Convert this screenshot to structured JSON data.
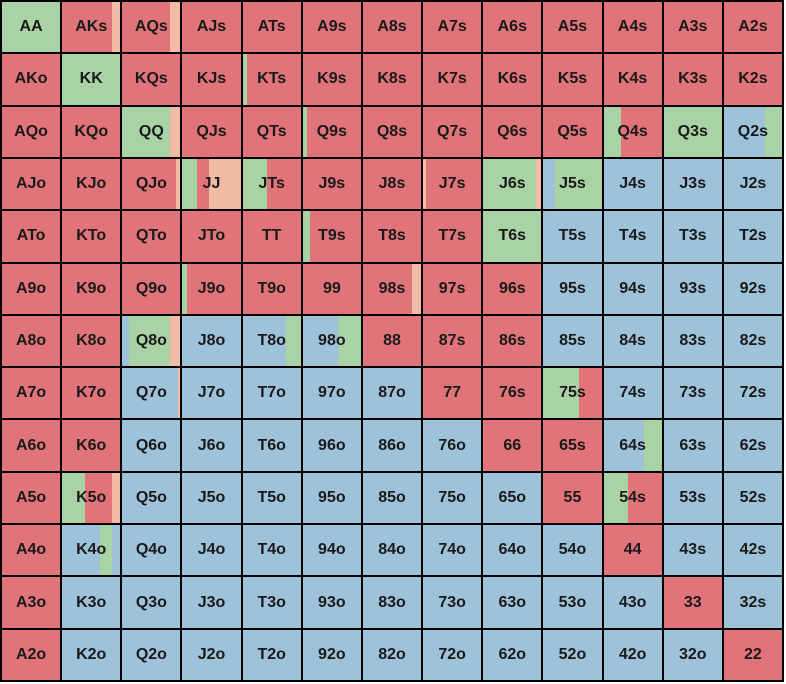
{
  "colors": {
    "raise": "#e0747a",
    "call": "#a9d3a4",
    "fold": "#9ec2da",
    "limp": "#f2bba5"
  },
  "hands": [
    [
      "AA",
      "AKs",
      "AQs",
      "AJs",
      "ATs",
      "A9s",
      "A8s",
      "A7s",
      "A6s",
      "A5s",
      "A4s",
      "A3s",
      "A2s"
    ],
    [
      "AKo",
      "KK",
      "KQs",
      "KJs",
      "KTs",
      "K9s",
      "K8s",
      "K7s",
      "K6s",
      "K5s",
      "K4s",
      "K3s",
      "K2s"
    ],
    [
      "AQo",
      "KQo",
      "QQ",
      "QJs",
      "QTs",
      "Q9s",
      "Q8s",
      "Q7s",
      "Q6s",
      "Q5s",
      "Q4s",
      "Q3s",
      "Q2s"
    ],
    [
      "AJo",
      "KJo",
      "QJo",
      "JJ",
      "JTs",
      "J9s",
      "J8s",
      "J7s",
      "J6s",
      "J5s",
      "J4s",
      "J3s",
      "J2s"
    ],
    [
      "ATo",
      "KTo",
      "QTo",
      "JTo",
      "TT",
      "T9s",
      "T8s",
      "T7s",
      "T6s",
      "T5s",
      "T4s",
      "T3s",
      "T2s"
    ],
    [
      "A9o",
      "K9o",
      "Q9o",
      "J9o",
      "T9o",
      "99",
      "98s",
      "97s",
      "96s",
      "95s",
      "94s",
      "93s",
      "92s"
    ],
    [
      "A8o",
      "K8o",
      "Q8o",
      "J8o",
      "T8o",
      "98o",
      "88",
      "87s",
      "86s",
      "85s",
      "84s",
      "83s",
      "82s"
    ],
    [
      "A7o",
      "K7o",
      "Q7o",
      "J7o",
      "T7o",
      "97o",
      "87o",
      "77",
      "76s",
      "75s",
      "74s",
      "73s",
      "72s"
    ],
    [
      "A6o",
      "K6o",
      "Q6o",
      "J6o",
      "T6o",
      "96o",
      "86o",
      "76o",
      "66",
      "65s",
      "64s",
      "63s",
      "62s"
    ],
    [
      "A5o",
      "K5o",
      "Q5o",
      "J5o",
      "T5o",
      "95o",
      "85o",
      "75o",
      "65o",
      "55",
      "54s",
      "53s",
      "52s"
    ],
    [
      "A4o",
      "K4o",
      "Q4o",
      "J4o",
      "T4o",
      "94o",
      "84o",
      "74o",
      "64o",
      "54o",
      "44",
      "43s",
      "42s"
    ],
    [
      "A3o",
      "K3o",
      "Q3o",
      "J3o",
      "T3o",
      "93o",
      "83o",
      "73o",
      "63o",
      "53o",
      "43o",
      "33",
      "32s"
    ],
    [
      "A2o",
      "K2o",
      "Q2o",
      "J2o",
      "T2o",
      "92o",
      "82o",
      "72o",
      "62o",
      "52o",
      "42o",
      "32o",
      "22"
    ]
  ],
  "strategy": [
    [
      [
        [
          "call",
          1
        ]
      ],
      [
        [
          "raise",
          0.85
        ],
        [
          "limp",
          0.15
        ]
      ],
      [
        [
          "raise",
          0.82
        ],
        [
          "limp",
          0.18
        ]
      ],
      [
        [
          "raise",
          1
        ]
      ],
      [
        [
          "raise",
          1
        ]
      ],
      [
        [
          "raise",
          1
        ]
      ],
      [
        [
          "raise",
          1
        ]
      ],
      [
        [
          "raise",
          1
        ]
      ],
      [
        [
          "raise",
          1
        ]
      ],
      [
        [
          "raise",
          1
        ]
      ],
      [
        [
          "raise",
          1
        ]
      ],
      [
        [
          "raise",
          1
        ]
      ],
      [
        [
          "raise",
          1
        ]
      ]
    ],
    [
      [
        [
          "raise",
          1
        ]
      ],
      [
        [
          "call",
          1
        ]
      ],
      [
        [
          "raise",
          1
        ]
      ],
      [
        [
          "raise",
          1
        ]
      ],
      [
        [
          "call",
          0.08
        ],
        [
          "raise",
          0.92
        ]
      ],
      [
        [
          "raise",
          1
        ]
      ],
      [
        [
          "raise",
          1
        ]
      ],
      [
        [
          "raise",
          1
        ]
      ],
      [
        [
          "raise",
          1
        ]
      ],
      [
        [
          "raise",
          1
        ]
      ],
      [
        [
          "raise",
          1
        ]
      ],
      [
        [
          "raise",
          1
        ]
      ],
      [
        [
          "raise",
          1
        ]
      ]
    ],
    [
      [
        [
          "raise",
          1
        ]
      ],
      [
        [
          "raise",
          1
        ]
      ],
      [
        [
          "call",
          0.82
        ],
        [
          "limp",
          0.18
        ]
      ],
      [
        [
          "raise",
          1
        ]
      ],
      [
        [
          "raise",
          1
        ]
      ],
      [
        [
          "call",
          0.08
        ],
        [
          "raise",
          0.92
        ]
      ],
      [
        [
          "raise",
          1
        ]
      ],
      [
        [
          "raise",
          1
        ]
      ],
      [
        [
          "raise",
          1
        ]
      ],
      [
        [
          "raise",
          1
        ]
      ],
      [
        [
          "call",
          0.3
        ],
        [
          "raise",
          0.7
        ]
      ],
      [
        [
          "call",
          1
        ]
      ],
      [
        [
          "fold",
          0.7
        ],
        [
          "call",
          0.3
        ]
      ]
    ],
    [
      [
        [
          "raise",
          1
        ]
      ],
      [
        [
          "raise",
          1
        ]
      ],
      [
        [
          "raise",
          0.92
        ],
        [
          "limp",
          0.08
        ]
      ],
      [
        [
          "call",
          0.25
        ],
        [
          "raise",
          0.2
        ],
        [
          "limp",
          0.55
        ]
      ],
      [
        [
          "call",
          0.42
        ],
        [
          "raise",
          0.58
        ]
      ],
      [
        [
          "raise",
          1
        ]
      ],
      [
        [
          "raise",
          1
        ]
      ],
      [
        [
          "limp",
          0.05
        ],
        [
          "raise",
          0.95
        ]
      ],
      [
        [
          "call",
          0.9
        ],
        [
          "limp",
          0.1
        ]
      ],
      [
        [
          "fold",
          0.2
        ],
        [
          "call",
          0.8
        ]
      ],
      [
        [
          "fold",
          1
        ]
      ],
      [
        [
          "fold",
          1
        ]
      ],
      [
        [
          "fold",
          1
        ]
      ]
    ],
    [
      [
        [
          "raise",
          1
        ]
      ],
      [
        [
          "raise",
          1
        ]
      ],
      [
        [
          "raise",
          1
        ]
      ],
      [
        [
          "raise",
          1
        ]
      ],
      [
        [
          "raise",
          1
        ]
      ],
      [
        [
          "call",
          0.12
        ],
        [
          "raise",
          0.88
        ]
      ],
      [
        [
          "raise",
          1
        ]
      ],
      [
        [
          "raise",
          1
        ]
      ],
      [
        [
          "call",
          1
        ]
      ],
      [
        [
          "fold",
          1
        ]
      ],
      [
        [
          "fold",
          1
        ]
      ],
      [
        [
          "fold",
          1
        ]
      ],
      [
        [
          "fold",
          1
        ]
      ]
    ],
    [
      [
        [
          "raise",
          1
        ]
      ],
      [
        [
          "raise",
          1
        ]
      ],
      [
        [
          "raise",
          1
        ]
      ],
      [
        [
          "call",
          0.08
        ],
        [
          "raise",
          0.92
        ]
      ],
      [
        [
          "raise",
          1
        ]
      ],
      [
        [
          "raise",
          1
        ]
      ],
      [
        [
          "raise",
          0.85
        ],
        [
          "limp",
          0.15
        ]
      ],
      [
        [
          "raise",
          1
        ]
      ],
      [
        [
          "raise",
          1
        ]
      ],
      [
        [
          "fold",
          1
        ]
      ],
      [
        [
          "fold",
          1
        ]
      ],
      [
        [
          "fold",
          1
        ]
      ],
      [
        [
          "fold",
          1
        ]
      ]
    ],
    [
      [
        [
          "raise",
          1
        ]
      ],
      [
        [
          "raise",
          1
        ]
      ],
      [
        [
          "fold",
          0.12
        ],
        [
          "call",
          0.7
        ],
        [
          "limp",
          0.18
        ]
      ],
      [
        [
          "fold",
          1
        ]
      ],
      [
        [
          "fold",
          0.75
        ],
        [
          "call",
          0.25
        ]
      ],
      [
        [
          "fold",
          0.6
        ],
        [
          "call",
          0.4
        ]
      ],
      [
        [
          "raise",
          1
        ]
      ],
      [
        [
          "raise",
          1
        ]
      ],
      [
        [
          "raise",
          1
        ]
      ],
      [
        [
          "fold",
          1
        ]
      ],
      [
        [
          "fold",
          1
        ]
      ],
      [
        [
          "fold",
          1
        ]
      ],
      [
        [
          "fold",
          1
        ]
      ]
    ],
    [
      [
        [
          "raise",
          1
        ]
      ],
      [
        [
          "raise",
          1
        ]
      ],
      [
        [
          "fold",
          0.95
        ],
        [
          "limp",
          0.05
        ]
      ],
      [
        [
          "fold",
          1
        ]
      ],
      [
        [
          "fold",
          1
        ]
      ],
      [
        [
          "fold",
          1
        ]
      ],
      [
        [
          "fold",
          1
        ]
      ],
      [
        [
          "raise",
          1
        ]
      ],
      [
        [
          "raise",
          1
        ]
      ],
      [
        [
          "call",
          0.62
        ],
        [
          "raise",
          0.38
        ]
      ],
      [
        [
          "fold",
          1
        ]
      ],
      [
        [
          "fold",
          1
        ]
      ],
      [
        [
          "fold",
          1
        ]
      ]
    ],
    [
      [
        [
          "raise",
          1
        ]
      ],
      [
        [
          "raise",
          1
        ]
      ],
      [
        [
          "fold",
          1
        ]
      ],
      [
        [
          "fold",
          1
        ]
      ],
      [
        [
          "fold",
          1
        ]
      ],
      [
        [
          "fold",
          1
        ]
      ],
      [
        [
          "fold",
          1
        ]
      ],
      [
        [
          "fold",
          1
        ]
      ],
      [
        [
          "raise",
          1
        ]
      ],
      [
        [
          "raise",
          1
        ]
      ],
      [
        [
          "fold",
          0.7
        ],
        [
          "call",
          0.3
        ]
      ],
      [
        [
          "fold",
          1
        ]
      ],
      [
        [
          "fold",
          1
        ]
      ]
    ],
    [
      [
        [
          "raise",
          1
        ]
      ],
      [
        [
          "call",
          0.4
        ],
        [
          "raise",
          0.45
        ],
        [
          "limp",
          0.15
        ]
      ],
      [
        [
          "fold",
          1
        ]
      ],
      [
        [
          "fold",
          1
        ]
      ],
      [
        [
          "fold",
          1
        ]
      ],
      [
        [
          "fold",
          1
        ]
      ],
      [
        [
          "fold",
          1
        ]
      ],
      [
        [
          "fold",
          1
        ]
      ],
      [
        [
          "fold",
          1
        ]
      ],
      [
        [
          "raise",
          1
        ]
      ],
      [
        [
          "call",
          0.42
        ],
        [
          "raise",
          0.58
        ]
      ],
      [
        [
          "fold",
          1
        ]
      ],
      [
        [
          "fold",
          1
        ]
      ]
    ],
    [
      [
        [
          "raise",
          1
        ]
      ],
      [
        [
          "fold",
          0.65
        ],
        [
          "call",
          0.2
        ],
        [
          "fold",
          0.15
        ]
      ],
      [
        [
          "fold",
          1
        ]
      ],
      [
        [
          "fold",
          1
        ]
      ],
      [
        [
          "fold",
          1
        ]
      ],
      [
        [
          "fold",
          1
        ]
      ],
      [
        [
          "fold",
          1
        ]
      ],
      [
        [
          "fold",
          1
        ]
      ],
      [
        [
          "fold",
          1
        ]
      ],
      [
        [
          "fold",
          1
        ]
      ],
      [
        [
          "raise",
          1
        ]
      ],
      [
        [
          "fold",
          1
        ]
      ],
      [
        [
          "fold",
          1
        ]
      ]
    ],
    [
      [
        [
          "raise",
          1
        ]
      ],
      [
        [
          "fold",
          1
        ]
      ],
      [
        [
          "fold",
          1
        ]
      ],
      [
        [
          "fold",
          1
        ]
      ],
      [
        [
          "fold",
          1
        ]
      ],
      [
        [
          "fold",
          1
        ]
      ],
      [
        [
          "fold",
          1
        ]
      ],
      [
        [
          "fold",
          1
        ]
      ],
      [
        [
          "fold",
          1
        ]
      ],
      [
        [
          "fold",
          1
        ]
      ],
      [
        [
          "fold",
          1
        ]
      ],
      [
        [
          "raise",
          1
        ]
      ],
      [
        [
          "fold",
          1
        ]
      ]
    ],
    [
      [
        [
          "raise",
          1
        ]
      ],
      [
        [
          "fold",
          1
        ]
      ],
      [
        [
          "fold",
          1
        ]
      ],
      [
        [
          "fold",
          1
        ]
      ],
      [
        [
          "fold",
          1
        ]
      ],
      [
        [
          "fold",
          1
        ]
      ],
      [
        [
          "fold",
          1
        ]
      ],
      [
        [
          "fold",
          1
        ]
      ],
      [
        [
          "fold",
          1
        ]
      ],
      [
        [
          "fold",
          1
        ]
      ],
      [
        [
          "fold",
          1
        ]
      ],
      [
        [
          "fold",
          1
        ]
      ],
      [
        [
          "raise",
          1
        ]
      ]
    ]
  ]
}
